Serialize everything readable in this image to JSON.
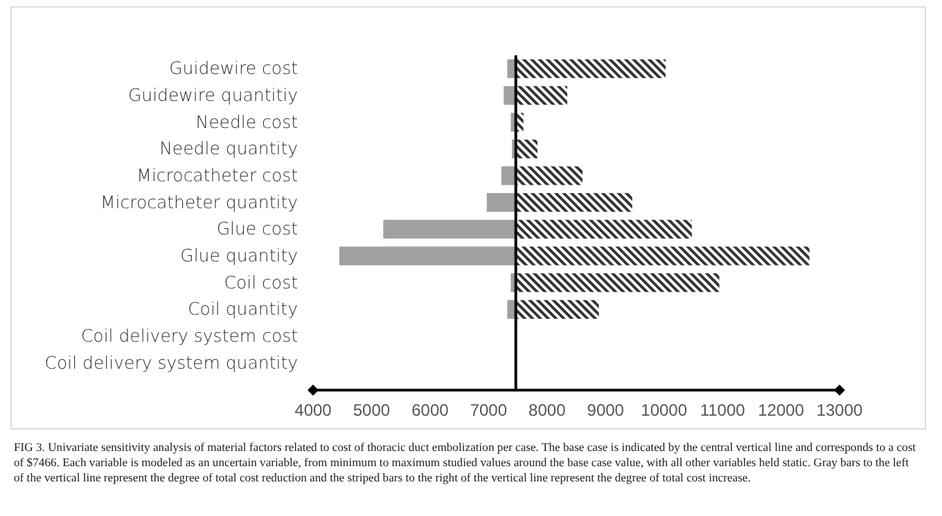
{
  "chart_data": {
    "type": "bar",
    "orientation": "horizontal",
    "categories": [
      "Guidewire cost",
      "Guidewire quantitiy",
      "Needle cost",
      "Needle quantity",
      "Microcatheter cost",
      "Microcatheter quantity",
      "Glue cost",
      "Glue quantity",
      "Coil cost",
      "Coil quantity",
      "Coil delivery system cost",
      "Coil delivery system quantity"
    ],
    "series": [
      {
        "color": "#a0a0a0",
        "base": [
          7320,
          7260,
          7380,
          7400,
          7220,
          6970,
          5200,
          4450,
          7380,
          7320,
          null,
          null
        ],
        "values": [
          150,
          210,
          90,
          70,
          250,
          500,
          2270,
          3020,
          90,
          150,
          null,
          null
        ]
      },
      {
        "color": "#333333",
        "base": [
          7466,
          7466,
          7466,
          7466,
          7466,
          7466,
          7466,
          7466,
          7466,
          7466,
          null,
          null
        ],
        "values": [
          2560,
          880,
          130,
          370,
          1140,
          1990,
          3010,
          5020,
          3480,
          1420,
          null,
          null
        ]
      }
    ],
    "xlim": [
      4000,
      13000
    ],
    "xticks": [
      4000,
      5000,
      6000,
      7000,
      8000,
      9000,
      10000,
      11000,
      12000,
      13000
    ],
    "ref_lines": [
      {
        "axis": "x",
        "value": 7466,
        "color": "#000000"
      }
    ],
    "annotations": [
      "FIG 3. Univariate sensitivity analysis of material factors related to cost of thoracic duct embolization per case. The base case is indicated by the central vertical line and corresponds to a cost of $7466. Each variable is modeled as an uncertain variable, from minimum to maximum studied values around the base case value, with all other variables held static. Gray bars to the left of the vertical line represent the degree of total cost reduction and the striped bars to the right of the vertical line represent the degree of total cost increase."
    ]
  }
}
